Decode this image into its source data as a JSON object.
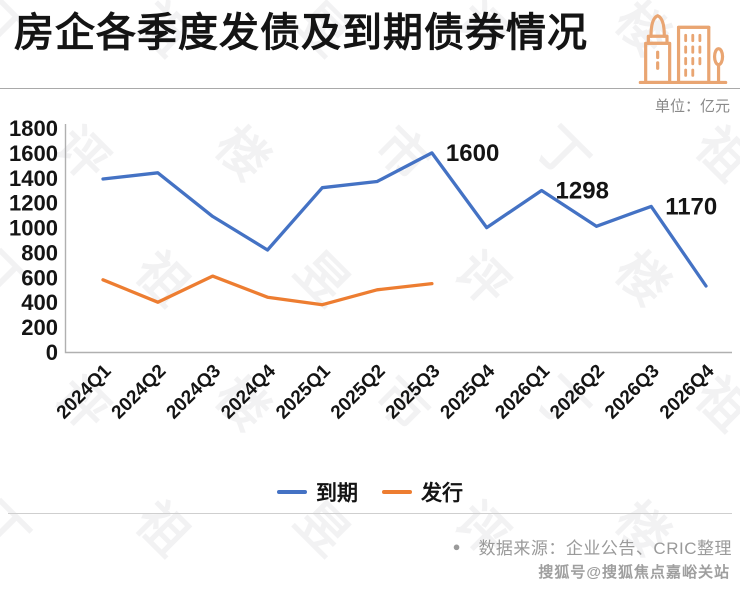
{
  "header": {
    "title": "房企各季度发债及到期债券情况",
    "unit_label": "单位：亿元"
  },
  "icon": {
    "name": "buildings-icon",
    "color": "#E9A572"
  },
  "chart_data": {
    "type": "line",
    "title": "房企各季度发债及到期债券情况",
    "unit": "亿元",
    "categories": [
      "2024Q1",
      "2024Q2",
      "2024Q3",
      "2024Q4",
      "2025Q1",
      "2025Q2",
      "2025Q3",
      "2025Q4",
      "2026Q1",
      "2026Q2",
      "2026Q3",
      "2026Q4"
    ],
    "series": [
      {
        "name": "到期",
        "color": "#4472C4",
        "values": [
          1390,
          1440,
          1090,
          820,
          1320,
          1370,
          1600,
          1000,
          1298,
          1010,
          1170,
          530
        ]
      },
      {
        "name": "发行",
        "color": "#ED7D31",
        "values": [
          580,
          400,
          610,
          440,
          380,
          500,
          550,
          null,
          null,
          null,
          null,
          null
        ]
      }
    ],
    "point_labels": [
      {
        "series": "到期",
        "category": "2025Q3",
        "value": "1600"
      },
      {
        "series": "到期",
        "category": "2026Q1",
        "value": "1298"
      },
      {
        "series": "到期",
        "category": "2026Q3",
        "value": "1170"
      }
    ],
    "y_axis": {
      "min": 0,
      "max": 1800,
      "step": 200
    },
    "grid": false,
    "legend_position": "bottom",
    "x_label_rotation": -45
  },
  "legend": {
    "items": [
      {
        "label": "到期",
        "color": "#4472C4"
      },
      {
        "label": "发行",
        "color": "#ED7D31"
      }
    ]
  },
  "footer": {
    "bullet": "●",
    "source_text": "数据来源：企业公告、CRIC整理",
    "platform_watermark": "搜狐号@搜狐焦点嘉峪关站"
  },
  "background_watermark": {
    "text": "丁祖昱评楼市"
  }
}
